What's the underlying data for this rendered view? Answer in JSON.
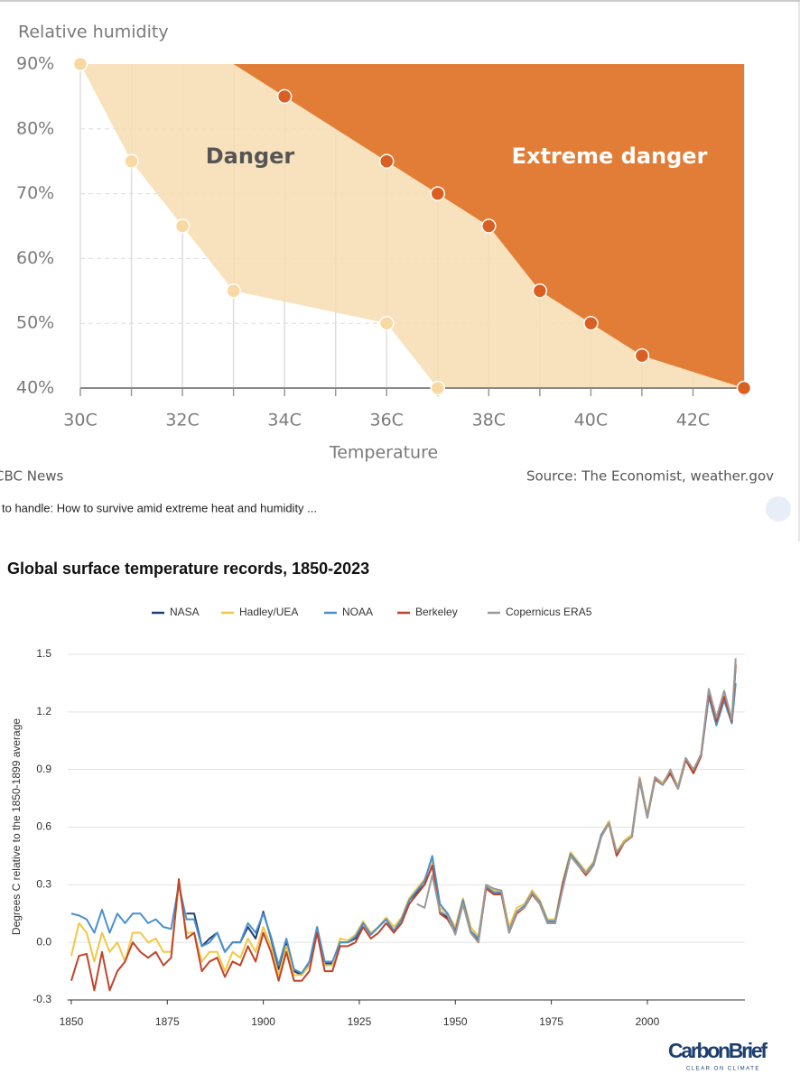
{
  "chart_data": [
    {
      "type": "area",
      "y_label": "Relative humidity",
      "x_label": "Temperature",
      "xlim": [
        30,
        43
      ],
      "ylim": [
        40,
        90
      ],
      "xticks": [
        {
          "value": 30,
          "label": "30C"
        },
        {
          "value": 32,
          "label": "32C"
        },
        {
          "value": 34,
          "label": "34C"
        },
        {
          "value": 36,
          "label": "36C"
        },
        {
          "value": 38,
          "label": "38C"
        },
        {
          "value": 40,
          "label": "40C"
        },
        {
          "value": 42,
          "label": "42C"
        }
      ],
      "xminor_ticks": [
        31,
        33,
        35,
        37,
        39,
        41,
        43
      ],
      "yticks": [
        {
          "value": 40,
          "label": "40%"
        },
        {
          "value": 50,
          "label": "50%"
        },
        {
          "value": 60,
          "label": "60%"
        },
        {
          "value": 70,
          "label": "70%"
        },
        {
          "value": 80,
          "label": "80%"
        },
        {
          "value": 90,
          "label": "90%"
        }
      ],
      "grid": true,
      "series": [
        {
          "name": "Danger",
          "color": "#f7deb4",
          "marker_color": "#f9d9a2",
          "x": [
            30,
            31,
            32,
            33,
            36,
            37
          ],
          "values": [
            90,
            75,
            65,
            55,
            50,
            40
          ]
        },
        {
          "name": "Extreme danger",
          "color": "#e27d37",
          "marker_color": "#d95f22",
          "x": [
            34,
            36,
            37,
            38,
            39,
            40,
            41,
            43
          ],
          "values": [
            85,
            75,
            70,
            65,
            55,
            50,
            45,
            40
          ]
        }
      ],
      "credit": "CBC News",
      "source": "Source: The Economist, weather.gov"
    },
    {
      "type": "line",
      "title": "Global surface temperature records, 1850-2023",
      "y_label": "Degrees C relative to the 1850-1899 average",
      "xlim": [
        1849,
        2024
      ],
      "ylim": [
        -0.3,
        1.5
      ],
      "xticks": [
        1850,
        1875,
        1900,
        1925,
        1950,
        1975,
        2000
      ],
      "yticks": [
        -0.3,
        {
          "value": 0,
          "label": "0.0"
        },
        0.3,
        0.6,
        0.9,
        1.2,
        1.5
      ],
      "grid": true,
      "x": [
        1850,
        1852,
        1854,
        1856,
        1858,
        1860,
        1862,
        1864,
        1866,
        1868,
        1870,
        1872,
        1874,
        1876,
        1878,
        1880,
        1882,
        1884,
        1886,
        1888,
        1890,
        1892,
        1894,
        1896,
        1898,
        1900,
        1902,
        1904,
        1906,
        1908,
        1910,
        1912,
        1914,
        1916,
        1918,
        1920,
        1922,
        1924,
        1926,
        1928,
        1930,
        1932,
        1934,
        1936,
        1938,
        1940,
        1942,
        1944,
        1946,
        1948,
        1950,
        1952,
        1954,
        1956,
        1958,
        1960,
        1962,
        1964,
        1966,
        1968,
        1970,
        1972,
        1974,
        1976,
        1978,
        1980,
        1982,
        1984,
        1986,
        1988,
        1990,
        1992,
        1994,
        1996,
        1998,
        2000,
        2002,
        2004,
        2006,
        2008,
        2010,
        2012,
        2014,
        2016,
        2018,
        2020,
        2022,
        2023
      ],
      "series": [
        {
          "name": "NASA",
          "color": "#1f3f73",
          "values": [
            null,
            null,
            null,
            null,
            null,
            null,
            null,
            null,
            null,
            null,
            null,
            null,
            null,
            null,
            null,
            0.15,
            0.15,
            -0.02,
            0.02,
            0.05,
            -0.05,
            0.0,
            0.0,
            0.08,
            0.02,
            0.16,
            0.02,
            -0.14,
            0.0,
            -0.15,
            -0.17,
            -0.11,
            0.07,
            -0.11,
            -0.11,
            0.0,
            0.0,
            0.02,
            0.1,
            0.04,
            0.08,
            0.12,
            0.06,
            0.12,
            0.22,
            0.26,
            0.3,
            0.4,
            0.16,
            0.13,
            0.05,
            0.21,
            0.06,
            0.01,
            0.29,
            0.26,
            0.26,
            0.06,
            0.16,
            0.19,
            0.27,
            0.21,
            0.11,
            0.11,
            0.31,
            0.46,
            0.41,
            0.36,
            0.41,
            0.56,
            0.63,
            0.46,
            0.53,
            0.56,
            0.86,
            0.66,
            0.86,
            0.83,
            0.89,
            0.81,
            0.96,
            0.89,
            0.98,
            1.29,
            1.14,
            1.28,
            1.15,
            1.44
          ]
        },
        {
          "name": "Hadley/UEA",
          "color": "#f2c744",
          "values": [
            -0.07,
            0.1,
            0.05,
            -0.1,
            0.05,
            -0.05,
            0.0,
            -0.1,
            0.05,
            0.05,
            0.0,
            0.02,
            -0.05,
            -0.05,
            0.3,
            0.05,
            0.05,
            -0.1,
            -0.05,
            -0.05,
            -0.15,
            -0.05,
            -0.08,
            0.02,
            -0.05,
            0.08,
            -0.02,
            -0.17,
            -0.02,
            -0.17,
            -0.17,
            -0.12,
            0.08,
            -0.12,
            -0.12,
            0.02,
            0.01,
            0.04,
            0.11,
            0.05,
            0.08,
            0.13,
            0.08,
            0.13,
            0.23,
            0.28,
            0.33,
            0.43,
            0.18,
            0.15,
            0.08,
            0.23,
            0.08,
            0.03,
            0.3,
            0.27,
            0.27,
            0.08,
            0.18,
            0.2,
            0.27,
            0.22,
            0.12,
            0.12,
            0.32,
            0.47,
            0.42,
            0.37,
            0.42,
            0.56,
            0.63,
            0.47,
            0.53,
            0.56,
            0.86,
            0.66,
            0.86,
            0.83,
            0.89,
            0.81,
            0.96,
            0.89,
            0.98,
            1.3,
            1.15,
            1.27,
            1.15,
            1.46
          ]
        },
        {
          "name": "NOAA",
          "color": "#4a90d0",
          "values": [
            0.15,
            0.14,
            0.12,
            0.05,
            0.17,
            0.05,
            0.15,
            0.1,
            0.15,
            0.15,
            0.1,
            0.12,
            0.08,
            0.07,
            0.3,
            0.12,
            0.12,
            -0.02,
            0.0,
            0.05,
            -0.05,
            0.0,
            0.0,
            0.1,
            0.05,
            0.15,
            0.03,
            -0.12,
            0.02,
            -0.14,
            -0.16,
            -0.1,
            0.08,
            -0.1,
            -0.1,
            0.0,
            0.0,
            0.03,
            0.1,
            0.04,
            0.08,
            0.12,
            0.06,
            0.12,
            0.22,
            0.27,
            0.32,
            0.45,
            0.2,
            0.15,
            0.06,
            0.22,
            0.06,
            0.02,
            0.29,
            0.26,
            0.26,
            0.06,
            0.16,
            0.19,
            0.26,
            0.21,
            0.11,
            0.11,
            0.31,
            0.46,
            0.41,
            0.36,
            0.41,
            0.56,
            0.62,
            0.46,
            0.52,
            0.55,
            0.84,
            0.65,
            0.85,
            0.82,
            0.88,
            0.8,
            0.95,
            0.88,
            0.97,
            1.28,
            1.13,
            1.26,
            1.14,
            1.35
          ]
        },
        {
          "name": "Berkeley",
          "color": "#c0442a",
          "values": [
            -0.2,
            -0.07,
            -0.06,
            -0.25,
            -0.05,
            -0.25,
            -0.15,
            -0.1,
            0.0,
            -0.05,
            -0.08,
            -0.05,
            -0.12,
            -0.08,
            0.33,
            0.02,
            0.05,
            -0.15,
            -0.1,
            -0.08,
            -0.18,
            -0.1,
            -0.12,
            -0.02,
            -0.1,
            0.05,
            -0.05,
            -0.2,
            -0.05,
            -0.2,
            -0.2,
            -0.15,
            0.05,
            -0.15,
            -0.15,
            -0.02,
            -0.02,
            0.0,
            0.08,
            0.02,
            0.05,
            0.1,
            0.05,
            0.1,
            0.2,
            0.25,
            0.3,
            0.4,
            0.15,
            0.12,
            0.05,
            0.2,
            0.05,
            0.0,
            0.28,
            0.25,
            0.25,
            0.05,
            0.15,
            0.18,
            0.25,
            0.2,
            0.1,
            0.1,
            0.3,
            0.45,
            0.4,
            0.35,
            0.4,
            0.55,
            0.62,
            0.45,
            0.52,
            0.55,
            0.85,
            0.65,
            0.85,
            0.82,
            0.88,
            0.8,
            0.95,
            0.88,
            0.97,
            1.3,
            1.15,
            1.28,
            1.15,
            1.45
          ]
        },
        {
          "name": "Copernicus ERA5",
          "color": "#9a9a9a",
          "values": [
            null,
            null,
            null,
            null,
            null,
            null,
            null,
            null,
            null,
            null,
            null,
            null,
            null,
            null,
            null,
            null,
            null,
            null,
            null,
            null,
            null,
            null,
            null,
            null,
            null,
            null,
            null,
            null,
            null,
            null,
            null,
            null,
            null,
            null,
            null,
            null,
            null,
            null,
            null,
            null,
            null,
            null,
            null,
            null,
            null,
            0.2,
            0.18,
            0.35,
            0.16,
            0.14,
            0.04,
            0.2,
            0.05,
            0.0,
            0.3,
            0.28,
            0.27,
            0.05,
            0.16,
            0.18,
            0.26,
            0.2,
            0.1,
            0.1,
            0.28,
            0.45,
            0.4,
            0.36,
            0.4,
            0.55,
            0.62,
            0.47,
            0.52,
            0.55,
            0.85,
            0.65,
            0.86,
            0.82,
            0.9,
            0.8,
            0.96,
            0.9,
            0.98,
            1.32,
            1.17,
            1.31,
            1.16,
            1.48
          ]
        }
      ]
    }
  ],
  "caption": "to handle: How to survive amid extreme heat and humidity ...",
  "logo": {
    "name": "CarbonBrief",
    "tagline": "CLEAR ON CLIMATE"
  }
}
